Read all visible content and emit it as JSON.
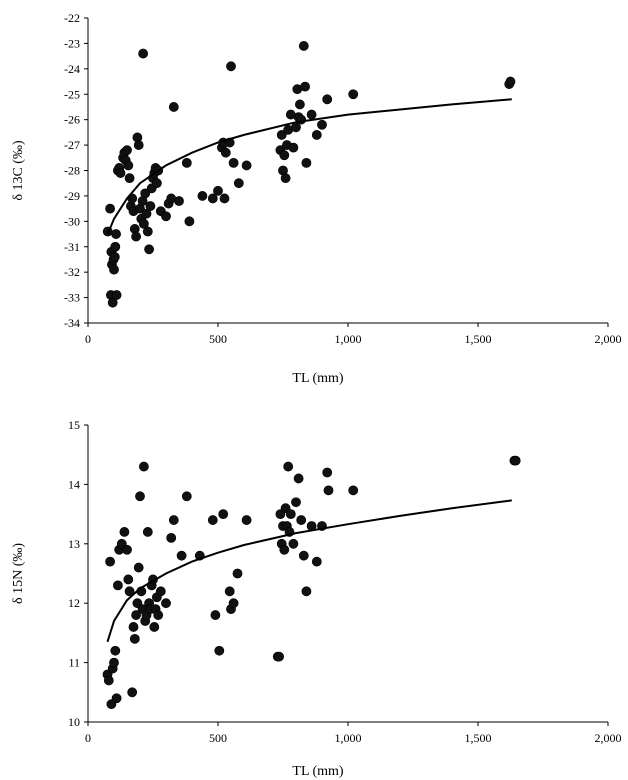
{
  "chart_data": [
    {
      "type": "scatter",
      "title": "",
      "xlabel": "TL (mm)",
      "ylabel": "δ 13C (‰)",
      "xlim": [
        0,
        2000
      ],
      "ylim": [
        -34,
        -22
      ],
      "xticks": [
        0,
        500,
        1000,
        1500,
        2000
      ],
      "xtick_labels": [
        "0",
        "500",
        "1,000",
        "1,500",
        "2,000"
      ],
      "yticks": [
        -34,
        -33,
        -32,
        -31,
        -30,
        -29,
        -28,
        -27,
        -26,
        -25,
        -24,
        -23,
        -22
      ],
      "ytick_labels": [
        "-34",
        "-33",
        "-32",
        "-31",
        "-30",
        "-29",
        "-28",
        "-27",
        "-26",
        "-25",
        "-24",
        "-23",
        "-22"
      ],
      "grid": false,
      "series": [
        {
          "points": [
            [
              76,
              -30.4
            ],
            [
              85,
              -29.5
            ],
            [
              88,
              -32.9
            ],
            [
              90,
              -31.2
            ],
            [
              92,
              -31.7
            ],
            [
              95,
              -33.2
            ],
            [
              98,
              -31.5
            ],
            [
              100,
              -31.9
            ],
            [
              103,
              -31.4
            ],
            [
              105,
              -31.0
            ],
            [
              108,
              -30.5
            ],
            [
              110,
              -32.9
            ],
            [
              115,
              -28.0
            ],
            [
              120,
              -27.9
            ],
            [
              125,
              -28.1
            ],
            [
              135,
              -27.5
            ],
            [
              140,
              -27.3
            ],
            [
              145,
              -27.6
            ],
            [
              150,
              -27.2
            ],
            [
              155,
              -27.8
            ],
            [
              160,
              -28.3
            ],
            [
              165,
              -29.4
            ],
            [
              170,
              -29.1
            ],
            [
              175,
              -29.6
            ],
            [
              180,
              -30.3
            ],
            [
              185,
              -30.6
            ],
            [
              190,
              -26.7
            ],
            [
              195,
              -27.0
            ],
            [
              200,
              -29.5
            ],
            [
              205,
              -29.9
            ],
            [
              210,
              -29.2
            ],
            [
              212,
              -23.4
            ],
            [
              215,
              -30.1
            ],
            [
              220,
              -28.9
            ],
            [
              225,
              -29.7
            ],
            [
              230,
              -30.4
            ],
            [
              235,
              -31.1
            ],
            [
              240,
              -29.4
            ],
            [
              245,
              -28.7
            ],
            [
              250,
              -28.3
            ],
            [
              255,
              -28.1
            ],
            [
              260,
              -27.9
            ],
            [
              265,
              -28.5
            ],
            [
              270,
              -28.0
            ],
            [
              280,
              -29.6
            ],
            [
              300,
              -29.8
            ],
            [
              310,
              -29.3
            ],
            [
              320,
              -29.1
            ],
            [
              330,
              -25.5
            ],
            [
              350,
              -29.2
            ],
            [
              380,
              -27.7
            ],
            [
              390,
              -30.0
            ],
            [
              440,
              -29.0
            ],
            [
              480,
              -29.1
            ],
            [
              500,
              -28.8
            ],
            [
              515,
              -27.1
            ],
            [
              520,
              -26.9
            ],
            [
              525,
              -29.1
            ],
            [
              530,
              -27.3
            ],
            [
              545,
              -26.9
            ],
            [
              550,
              -23.9
            ],
            [
              560,
              -27.7
            ],
            [
              580,
              -28.5
            ],
            [
              610,
              -27.8
            ],
            [
              740,
              -27.2
            ],
            [
              745,
              -26.6
            ],
            [
              750,
              -28.0
            ],
            [
              755,
              -27.4
            ],
            [
              760,
              -28.3
            ],
            [
              765,
              -27.0
            ],
            [
              770,
              -26.4
            ],
            [
              780,
              -25.8
            ],
            [
              790,
              -27.1
            ],
            [
              800,
              -26.3
            ],
            [
              805,
              -24.8
            ],
            [
              810,
              -25.9
            ],
            [
              815,
              -25.4
            ],
            [
              820,
              -26.0
            ],
            [
              830,
              -23.1
            ],
            [
              835,
              -24.7
            ],
            [
              840,
              -27.7
            ],
            [
              860,
              -25.8
            ],
            [
              880,
              -26.6
            ],
            [
              900,
              -26.2
            ],
            [
              920,
              -25.2
            ],
            [
              1020,
              -25.0
            ],
            [
              1620,
              -24.6
            ],
            [
              1625,
              -24.5
            ]
          ]
        }
      ],
      "trendline": {
        "type": "logarithmic",
        "points": [
          [
            76,
            -30.5
          ],
          [
            100,
            -29.9
          ],
          [
            150,
            -29.1
          ],
          [
            200,
            -28.5
          ],
          [
            300,
            -27.8
          ],
          [
            400,
            -27.3
          ],
          [
            500,
            -26.9
          ],
          [
            600,
            -26.6
          ],
          [
            800,
            -26.1
          ],
          [
            1000,
            -25.8
          ],
          [
            1200,
            -25.6
          ],
          [
            1400,
            -25.4
          ],
          [
            1630,
            -25.2
          ]
        ]
      }
    },
    {
      "type": "scatter",
      "title": "",
      "xlabel": "TL (mm)",
      "ylabel": "δ 15N (‰)",
      "xlim": [
        0,
        2000
      ],
      "ylim": [
        10,
        15
      ],
      "xticks": [
        0,
        500,
        1000,
        1500,
        2000
      ],
      "xtick_labels": [
        "0",
        "500",
        "1,000",
        "1,500",
        "2,000"
      ],
      "yticks": [
        10,
        11,
        12,
        13,
        14,
        15
      ],
      "ytick_labels": [
        "10",
        "11",
        "12",
        "13",
        "14",
        "15"
      ],
      "grid": false,
      "series": [
        {
          "points": [
            [
              75,
              10.8
            ],
            [
              80,
              10.7
            ],
            [
              85,
              12.7
            ],
            [
              90,
              10.3
            ],
            [
              95,
              10.9
            ],
            [
              100,
              11.0
            ],
            [
              105,
              11.2
            ],
            [
              110,
              10.4
            ],
            [
              115,
              12.3
            ],
            [
              120,
              12.9
            ],
            [
              130,
              13.0
            ],
            [
              140,
              13.2
            ],
            [
              150,
              12.9
            ],
            [
              155,
              12.4
            ],
            [
              160,
              12.2
            ],
            [
              170,
              10.5
            ],
            [
              175,
              11.6
            ],
            [
              180,
              11.4
            ],
            [
              185,
              11.8
            ],
            [
              190,
              12.0
            ],
            [
              195,
              12.6
            ],
            [
              200,
              13.8
            ],
            [
              205,
              12.2
            ],
            [
              210,
              11.9
            ],
            [
              215,
              14.3
            ],
            [
              220,
              11.7
            ],
            [
              225,
              11.8
            ],
            [
              230,
              13.2
            ],
            [
              235,
              12.0
            ],
            [
              240,
              11.9
            ],
            [
              245,
              12.3
            ],
            [
              250,
              12.4
            ],
            [
              255,
              11.6
            ],
            [
              260,
              11.9
            ],
            [
              265,
              12.1
            ],
            [
              270,
              11.8
            ],
            [
              280,
              12.2
            ],
            [
              300,
              12.0
            ],
            [
              320,
              13.1
            ],
            [
              330,
              13.4
            ],
            [
              360,
              12.8
            ],
            [
              380,
              13.8
            ],
            [
              430,
              12.8
            ],
            [
              480,
              13.4
            ],
            [
              490,
              11.8
            ],
            [
              505,
              11.2
            ],
            [
              520,
              13.5
            ],
            [
              545,
              12.2
            ],
            [
              550,
              11.9
            ],
            [
              560,
              12.0
            ],
            [
              575,
              12.5
            ],
            [
              610,
              13.4
            ],
            [
              730,
              11.1
            ],
            [
              735,
              11.1
            ],
            [
              740,
              13.5
            ],
            [
              745,
              13.0
            ],
            [
              750,
              13.3
            ],
            [
              755,
              12.9
            ],
            [
              760,
              13.6
            ],
            [
              765,
              13.3
            ],
            [
              770,
              14.3
            ],
            [
              775,
              13.2
            ],
            [
              780,
              13.5
            ],
            [
              790,
              13.0
            ],
            [
              800,
              13.7
            ],
            [
              810,
              14.1
            ],
            [
              820,
              13.4
            ],
            [
              830,
              12.8
            ],
            [
              840,
              12.2
            ],
            [
              860,
              13.3
            ],
            [
              880,
              12.7
            ],
            [
              900,
              13.3
            ],
            [
              920,
              14.2
            ],
            [
              925,
              13.9
            ],
            [
              1020,
              13.9
            ],
            [
              1640,
              14.4
            ],
            [
              1645,
              14.4
            ]
          ]
        }
      ],
      "trendline": {
        "type": "logarithmic",
        "points": [
          [
            75,
            11.35
          ],
          [
            100,
            11.7
          ],
          [
            150,
            12.05
          ],
          [
            200,
            12.25
          ],
          [
            300,
            12.5
          ],
          [
            400,
            12.7
          ],
          [
            500,
            12.85
          ],
          [
            600,
            12.98
          ],
          [
            800,
            13.18
          ],
          [
            1000,
            13.33
          ],
          [
            1200,
            13.47
          ],
          [
            1400,
            13.6
          ],
          [
            1630,
            13.73
          ]
        ]
      }
    }
  ]
}
